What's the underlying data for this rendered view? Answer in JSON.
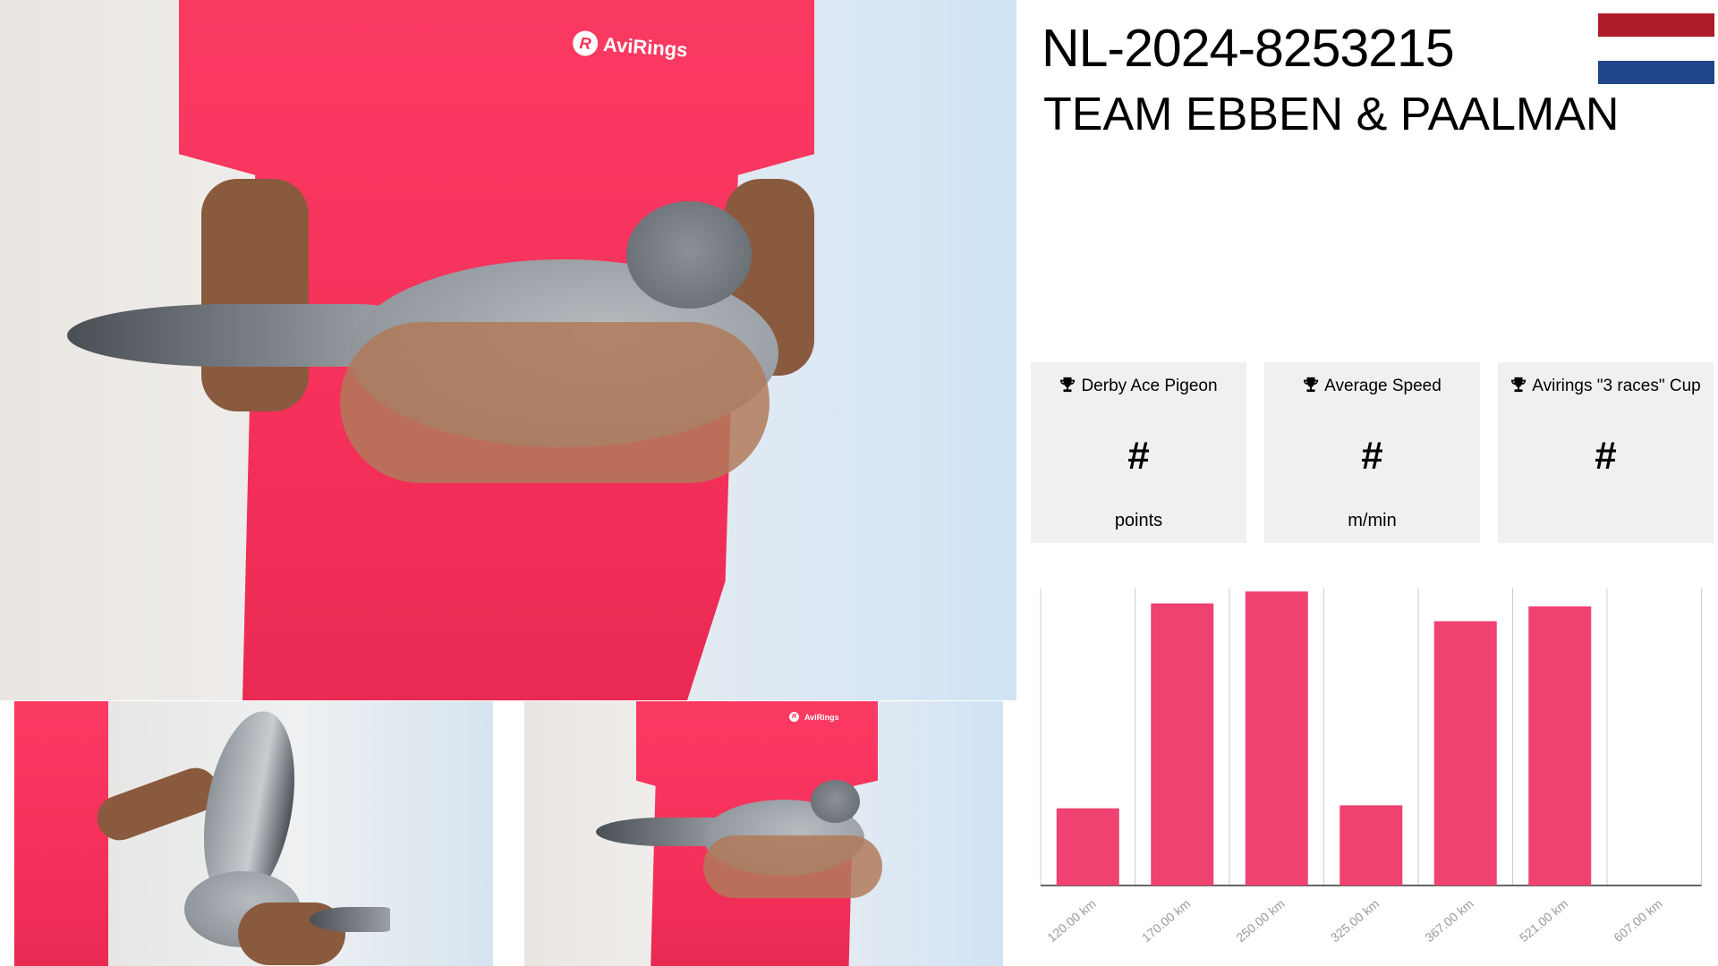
{
  "header": {
    "ring_number": "NL-2024-8253215",
    "owner": "TEAM EBBEN & PAALMAN",
    "flag_colors": [
      "#ae1c28",
      "#ffffff",
      "#21468b"
    ]
  },
  "photos": {
    "shirt_logo": "AviRings",
    "shirt_color": "#f5305a"
  },
  "cards": [
    {
      "icon": "trophy-icon",
      "label": "Derby Ace Pigeon",
      "value": "#",
      "unit": "points"
    },
    {
      "icon": "trophy-icon",
      "label": "Average Speed",
      "value": "#",
      "unit": "m/min"
    },
    {
      "icon": "trophy-icon",
      "label": "Avirings \"3 races\" Cup",
      "value": "#",
      "unit": ""
    }
  ],
  "chart_data": {
    "type": "bar",
    "categories": [
      "120.00 km",
      "170.00 km",
      "250.00 km",
      "325.00 km",
      "367.00 km",
      "521.00 km",
      "607.00 km"
    ],
    "values": [
      26,
      95,
      99,
      27,
      89,
      94,
      0
    ],
    "ylim": [
      0,
      100
    ],
    "bar_color": "#ef4270",
    "grid": "vertical",
    "title": "",
    "xlabel": "",
    "ylabel": ""
  }
}
